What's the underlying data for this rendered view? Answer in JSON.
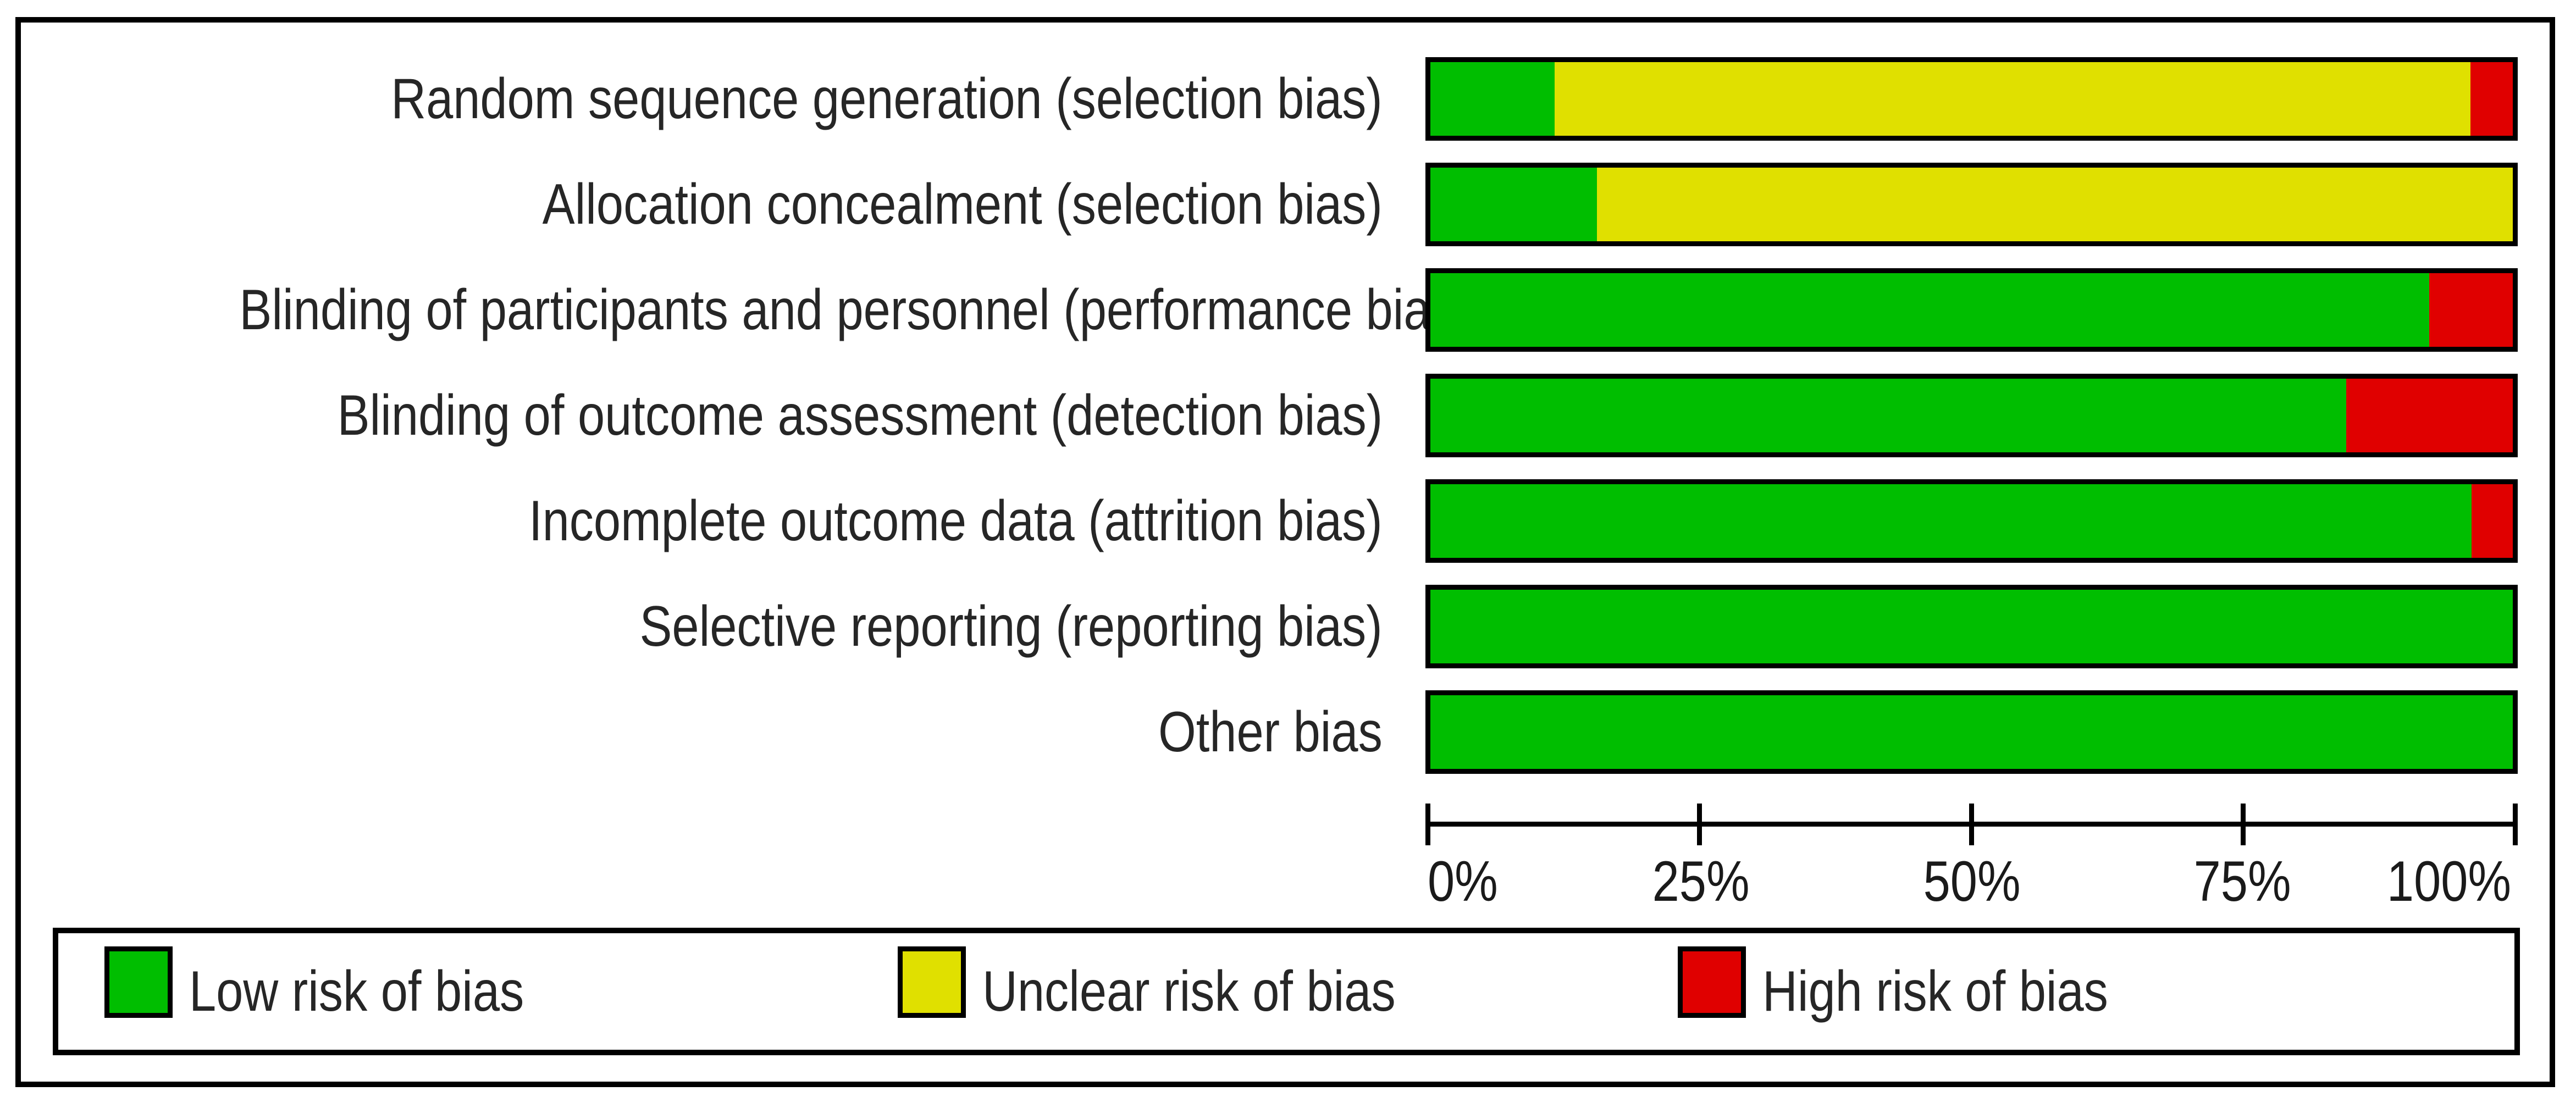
{
  "figure": {
    "background": "#ffffff",
    "frame_color": "#000000",
    "text_color": "#262626"
  },
  "colors": {
    "low": "#00BE00",
    "unclear": "#E0E000",
    "high": "#E00000",
    "bar_border": "#000000"
  },
  "rows": [
    {
      "label": "Random sequence generation (selection bias)",
      "low": 11.5,
      "unclear": 84.6,
      "high": 3.9
    },
    {
      "label": "Allocation concealment (selection bias)",
      "low": 15.4,
      "unclear": 84.6,
      "high": 0
    },
    {
      "label": "Blinding of participants and personnel (performance bias)",
      "low": 92.3,
      "unclear": 0,
      "high": 7.7
    },
    {
      "label": "Blinding of outcome assessment (detection bias)",
      "low": 84.6,
      "unclear": 0,
      "high": 15.4
    },
    {
      "label": "Incomplete outcome data (attrition bias)",
      "low": 96.2,
      "unclear": 0,
      "high": 3.8
    },
    {
      "label": "Selective reporting (reporting bias)",
      "low": 100,
      "unclear": 0,
      "high": 0
    },
    {
      "label": "Other bias",
      "low": 100,
      "unclear": 0,
      "high": 0
    }
  ],
  "axis": {
    "ticks": [
      "0%",
      "25%",
      "50%",
      "75%",
      "100%"
    ]
  },
  "legend": {
    "items": [
      {
        "key": "low",
        "label": "Low risk of bias",
        "color": "#00BE00"
      },
      {
        "key": "unclear",
        "label": "Unclear risk of bias",
        "color": "#E0E000"
      },
      {
        "key": "high",
        "label": "High risk of bias",
        "color": "#E00000"
      }
    ]
  },
  "chart_data": {
    "type": "bar",
    "orientation": "horizontal",
    "stacked": true,
    "categories": [
      "Random sequence generation (selection bias)",
      "Allocation concealment (selection bias)",
      "Blinding of participants and personnel (performance bias)",
      "Blinding of outcome assessment (detection bias)",
      "Incomplete outcome data (attrition bias)",
      "Selective reporting (reporting bias)",
      "Other bias"
    ],
    "series": [
      {
        "name": "Low risk of bias",
        "color": "#00BE00",
        "values": [
          11.5,
          15.4,
          92.3,
          84.6,
          96.2,
          100,
          100
        ]
      },
      {
        "name": "Unclear risk of bias",
        "color": "#E0E000",
        "values": [
          84.6,
          84.6,
          0,
          0,
          0,
          0,
          0
        ]
      },
      {
        "name": "High risk of bias",
        "color": "#E00000",
        "values": [
          3.9,
          0,
          7.7,
          15.4,
          3.8,
          0,
          0
        ]
      }
    ],
    "xlabel": "",
    "ylabel": "",
    "xlim": [
      0,
      100
    ],
    "x_tick_labels": [
      "0%",
      "25%",
      "50%",
      "75%",
      "100%"
    ],
    "grid": false,
    "legend_position": "bottom"
  }
}
